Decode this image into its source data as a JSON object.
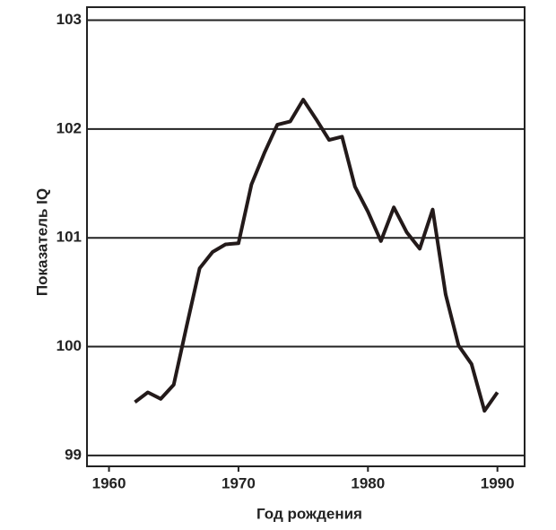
{
  "chart_data": {
    "type": "line",
    "x_label": "Год рождения",
    "y_label": "Показатель IQ",
    "x": [
      1962,
      1963,
      1964,
      1965,
      1966,
      1967,
      1968,
      1969,
      1970,
      1971,
      1972,
      1973,
      1974,
      1975,
      1976,
      1977,
      1978,
      1979,
      1980,
      1981,
      1982,
      1983,
      1984,
      1985,
      1986,
      1987,
      1988,
      1989,
      1990
    ],
    "series": [
      {
        "name": "IQ",
        "color": "#231a1a",
        "values": [
          99.49,
          99.58,
          99.52,
          99.65,
          100.19,
          100.72,
          100.87,
          100.94,
          100.95,
          101.49,
          101.78,
          102.04,
          102.07,
          102.27,
          102.09,
          101.9,
          101.93,
          101.47,
          101.24,
          100.97,
          101.28,
          101.05,
          100.9,
          101.26,
          100.48,
          100.01,
          99.84,
          99.41,
          99.58
        ]
      }
    ],
    "xlim": [
      1958.3,
      1992.1
    ],
    "xticks": [
      1960,
      1970,
      1980,
      1990
    ],
    "ylim": [
      98.9,
      103.12
    ],
    "yticks": [
      99,
      100,
      101,
      102,
      103
    ],
    "grid": true
  }
}
